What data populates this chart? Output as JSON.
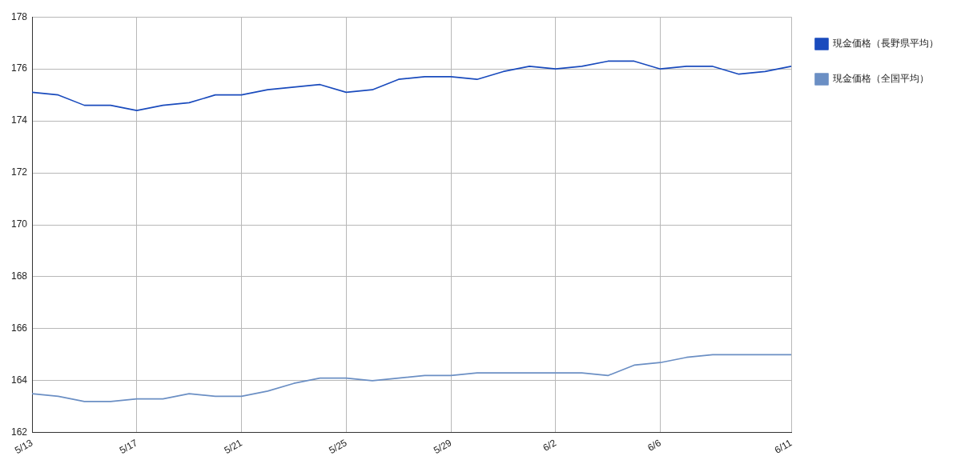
{
  "chart_data": {
    "type": "line",
    "categories": [
      "5/13",
      null,
      null,
      null,
      "5/17",
      null,
      null,
      null,
      "5/21",
      null,
      null,
      null,
      "5/25",
      null,
      null,
      null,
      "5/29",
      null,
      null,
      null,
      "6/2",
      null,
      null,
      null,
      "6/6",
      null,
      null,
      null,
      null,
      "6/11"
    ],
    "series": [
      {
        "name": "現金価格（長野県平均）",
        "color": "#1a4bbd",
        "values": [
          175.1,
          175.0,
          174.6,
          174.6,
          174.4,
          174.6,
          174.7,
          175.0,
          175.0,
          175.2,
          175.3,
          175.4,
          175.1,
          175.2,
          175.6,
          175.7,
          175.7,
          175.6,
          175.9,
          176.1,
          176.0,
          176.1,
          176.3,
          176.3,
          176.0,
          176.1,
          176.1,
          175.8,
          175.9,
          176.1
        ]
      },
      {
        "name": "現金価格（全国平均）",
        "color": "#6b8fc4",
        "values": [
          163.5,
          163.4,
          163.2,
          163.2,
          163.3,
          163.3,
          163.5,
          163.4,
          163.4,
          163.6,
          163.9,
          164.1,
          164.1,
          164.0,
          164.1,
          164.2,
          164.2,
          164.3,
          164.3,
          164.3,
          164.3,
          164.3,
          164.2,
          164.6,
          164.7,
          164.9,
          165.0,
          165.0,
          165.0,
          165.0
        ]
      }
    ],
    "ylim": [
      162,
      178
    ],
    "yticks": [
      162,
      164,
      166,
      168,
      170,
      172,
      174,
      176,
      178
    ],
    "grid": true,
    "legend": "right",
    "marker": "none",
    "line_style": "solid"
  }
}
